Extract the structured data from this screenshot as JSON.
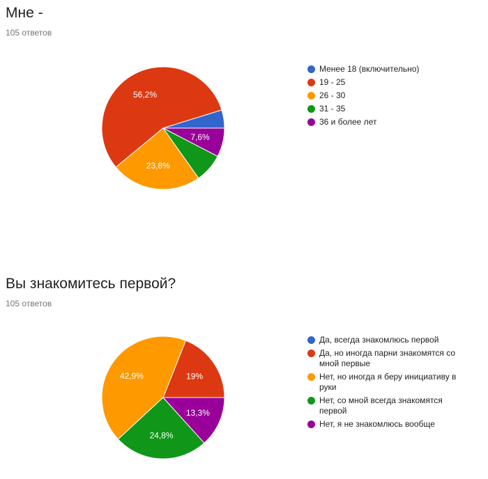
{
  "charts": [
    {
      "title": "Мне -",
      "responses": "105 ответов"
    },
    {
      "title": "Вы знакомитесь первой?",
      "responses": "105 ответов"
    }
  ],
  "chart_data": [
    {
      "type": "pie",
      "title": "Мне -",
      "categories": [
        "Менее 18 (включительно)",
        "19 - 25",
        "26 - 30",
        "31 - 35",
        "36 и более лет"
      ],
      "values": [
        4.8,
        56.2,
        23.8,
        7.6,
        7.6
      ],
      "slice_labels": [
        "",
        "56,2%",
        "23,8%",
        "",
        "7,6%"
      ],
      "colors": [
        "#3366cc",
        "#dc3912",
        "#ff9900",
        "#109618",
        "#990099"
      ],
      "legend_position": "right"
    },
    {
      "type": "pie",
      "title": "Вы знакомитесь первой?",
      "categories": [
        "Да, всегда знакомлюсь первой",
        "Да, но иногда парни знакомятся со мной первые",
        "Нет, но иногда я беру инициативу в руки",
        "Нет, со мной всегда знакомятся первой",
        "Нет, я не знакомлюсь вообще"
      ],
      "values": [
        0,
        19,
        42.9,
        24.8,
        13.3
      ],
      "slice_labels": [
        "",
        "19%",
        "42,9%",
        "24,8%",
        "13,3%"
      ],
      "colors": [
        "#3366cc",
        "#dc3912",
        "#ff9900",
        "#109618",
        "#990099"
      ],
      "legend_position": "right"
    }
  ]
}
